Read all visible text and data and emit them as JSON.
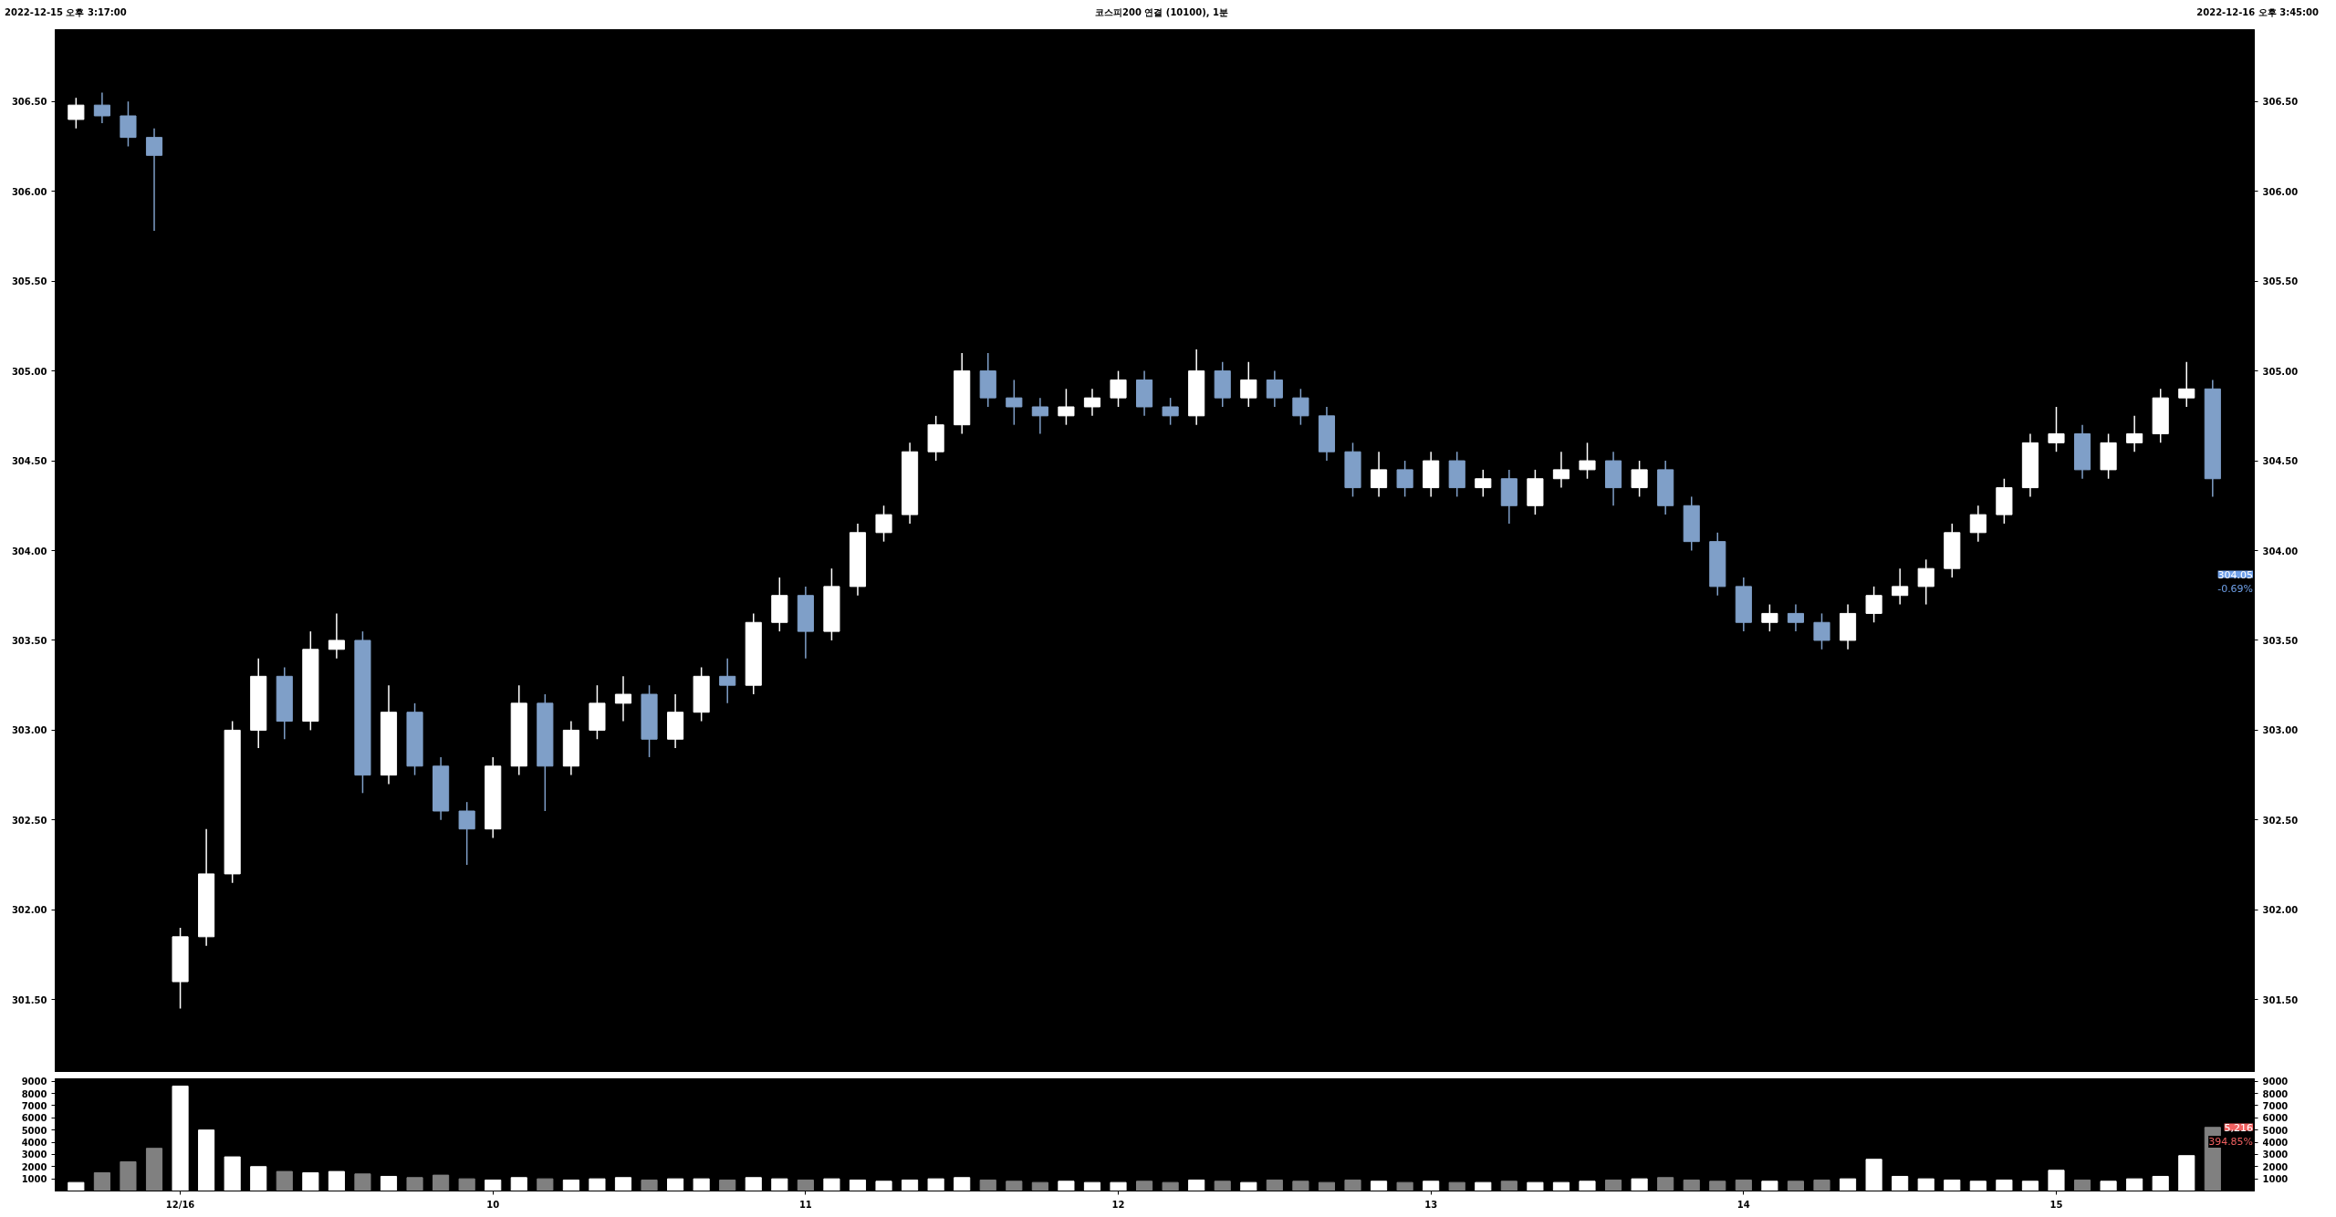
{
  "chart_data": [
    {
      "type": "candlestick",
      "title": "코스피200 연결 (10100), 1분",
      "annotations": [
        "2022-12-15 오후 3:17:00",
        "2022-12-16 오후 3:45:00",
        "304.05",
        "-0.69%"
      ],
      "categories": [
        null,
        null,
        null,
        null,
        null,
        null,
        null,
        null,
        null,
        null,
        null,
        null,
        null,
        null,
        null,
        null,
        null,
        null,
        null,
        null,
        null,
        null,
        null,
        null,
        null,
        null,
        null,
        null,
        null,
        null,
        null,
        null,
        null,
        null,
        null,
        null,
        null,
        null,
        null,
        null,
        null,
        null,
        null,
        null,
        null,
        null,
        null,
        null,
        null,
        null,
        null,
        null,
        null,
        null,
        null,
        null,
        null,
        null,
        null,
        null,
        null,
        null,
        null,
        null,
        null,
        null,
        null,
        null,
        null,
        null,
        null,
        null,
        null,
        null,
        null,
        null,
        null,
        null,
        null,
        null,
        null,
        null,
        null
      ],
      "ohlc": [
        [
          306.4,
          306.52,
          306.35,
          306.48
        ],
        [
          306.48,
          306.55,
          306.38,
          306.42
        ],
        [
          306.42,
          306.5,
          306.25,
          306.3
        ],
        [
          306.3,
          306.35,
          305.78,
          306.2
        ],
        [
          301.6,
          301.9,
          301.45,
          301.85
        ],
        [
          301.85,
          302.45,
          301.8,
          302.2
        ],
        [
          302.2,
          303.05,
          302.15,
          303.0
        ],
        [
          303.0,
          303.4,
          302.9,
          303.3
        ],
        [
          303.3,
          303.35,
          302.95,
          303.05
        ],
        [
          303.05,
          303.55,
          303.0,
          303.45
        ],
        [
          303.45,
          303.65,
          303.4,
          303.5
        ],
        [
          303.5,
          303.55,
          302.65,
          302.75
        ],
        [
          302.75,
          303.25,
          302.7,
          303.1
        ],
        [
          303.1,
          303.15,
          302.75,
          302.8
        ],
        [
          302.8,
          302.85,
          302.5,
          302.55
        ],
        [
          302.55,
          302.6,
          302.25,
          302.45
        ],
        [
          302.45,
          302.85,
          302.4,
          302.8
        ],
        [
          302.8,
          303.25,
          302.75,
          303.15
        ],
        [
          303.15,
          303.2,
          302.55,
          302.8
        ],
        [
          302.8,
          303.05,
          302.75,
          303.0
        ],
        [
          303.0,
          303.25,
          302.95,
          303.15
        ],
        [
          303.15,
          303.3,
          303.05,
          303.2
        ],
        [
          303.2,
          303.25,
          302.85,
          302.95
        ],
        [
          302.95,
          303.2,
          302.9,
          303.1
        ],
        [
          303.1,
          303.35,
          303.05,
          303.3
        ],
        [
          303.3,
          303.4,
          303.15,
          303.25
        ],
        [
          303.25,
          303.65,
          303.2,
          303.6
        ],
        [
          303.6,
          303.85,
          303.55,
          303.75
        ],
        [
          303.75,
          303.8,
          303.4,
          303.55
        ],
        [
          303.55,
          303.9,
          303.5,
          303.8
        ],
        [
          303.8,
          304.15,
          303.75,
          304.1
        ],
        [
          304.1,
          304.25,
          304.05,
          304.2
        ],
        [
          304.2,
          304.6,
          304.15,
          304.55
        ],
        [
          304.55,
          304.75,
          304.5,
          304.7
        ],
        [
          304.7,
          305.1,
          304.65,
          305.0
        ],
        [
          305.0,
          305.1,
          304.8,
          304.85
        ],
        [
          304.85,
          304.95,
          304.7,
          304.8
        ],
        [
          304.8,
          304.85,
          304.65,
          304.75
        ],
        [
          304.75,
          304.9,
          304.7,
          304.8
        ],
        [
          304.8,
          304.9,
          304.75,
          304.85
        ],
        [
          304.85,
          305.0,
          304.8,
          304.95
        ],
        [
          304.95,
          305.0,
          304.75,
          304.8
        ],
        [
          304.8,
          304.85,
          304.7,
          304.75
        ],
        [
          304.75,
          305.12,
          304.7,
          305.0
        ],
        [
          305.0,
          305.05,
          304.8,
          304.85
        ],
        [
          304.85,
          305.05,
          304.8,
          304.95
        ],
        [
          304.95,
          305.0,
          304.8,
          304.85
        ],
        [
          304.85,
          304.9,
          304.7,
          304.75
        ],
        [
          304.75,
          304.8,
          304.5,
          304.55
        ],
        [
          304.55,
          304.6,
          304.3,
          304.35
        ],
        [
          304.35,
          304.55,
          304.3,
          304.45
        ],
        [
          304.45,
          304.5,
          304.3,
          304.35
        ],
        [
          304.35,
          304.55,
          304.3,
          304.5
        ],
        [
          304.5,
          304.55,
          304.3,
          304.35
        ],
        [
          304.35,
          304.45,
          304.3,
          304.4
        ],
        [
          304.4,
          304.45,
          304.15,
          304.25
        ],
        [
          304.25,
          304.45,
          304.2,
          304.4
        ],
        [
          304.4,
          304.55,
          304.35,
          304.45
        ],
        [
          304.45,
          304.6,
          304.4,
          304.5
        ],
        [
          304.5,
          304.55,
          304.25,
          304.35
        ],
        [
          304.35,
          304.5,
          304.3,
          304.45
        ],
        [
          304.45,
          304.5,
          304.2,
          304.25
        ],
        [
          304.25,
          304.3,
          304.0,
          304.05
        ],
        [
          304.05,
          304.1,
          303.75,
          303.8
        ],
        [
          303.8,
          303.85,
          303.55,
          303.6
        ],
        [
          303.6,
          303.7,
          303.55,
          303.65
        ],
        [
          303.65,
          303.7,
          303.55,
          303.6
        ],
        [
          303.6,
          303.65,
          303.45,
          303.5
        ],
        [
          303.5,
          303.7,
          303.45,
          303.65
        ],
        [
          303.65,
          303.8,
          303.6,
          303.75
        ],
        [
          303.75,
          303.9,
          303.7,
          303.8
        ],
        [
          303.8,
          303.95,
          303.7,
          303.9
        ],
        [
          303.9,
          304.15,
          303.85,
          304.1
        ],
        [
          304.1,
          304.25,
          304.05,
          304.2
        ],
        [
          304.2,
          304.4,
          304.15,
          304.35
        ],
        [
          304.35,
          304.65,
          304.3,
          304.6
        ],
        [
          304.6,
          304.8,
          304.55,
          304.65
        ],
        [
          304.65,
          304.7,
          304.4,
          304.45
        ],
        [
          304.45,
          304.65,
          304.4,
          304.6
        ],
        [
          304.6,
          304.75,
          304.55,
          304.65
        ],
        [
          304.65,
          304.9,
          304.6,
          304.85
        ],
        [
          304.85,
          305.05,
          304.8,
          304.9
        ],
        [
          304.9,
          304.95,
          304.3,
          304.4
        ]
      ],
      "colors": [
        "#ffffff",
        "#7f9fc8",
        "#7f9fc8",
        "#7f9fc8",
        "#ffffff",
        "#ffffff",
        "#ffffff",
        "#ffffff",
        "#7f9fc8",
        "#ffffff",
        "#ffffff",
        "#7f9fc8",
        "#ffffff",
        "#7f9fc8",
        "#7f9fc8",
        "#7f9fc8",
        "#ffffff",
        "#ffffff",
        "#7f9fc8",
        "#ffffff",
        "#ffffff",
        "#ffffff",
        "#7f9fc8",
        "#ffffff",
        "#ffffff",
        "#7f9fc8",
        "#ffffff",
        "#ffffff",
        "#7f9fc8",
        "#ffffff",
        "#ffffff",
        "#ffffff",
        "#ffffff",
        "#ffffff",
        "#ffffff",
        "#7f9fc8",
        "#7f9fc8",
        "#7f9fc8",
        "#ffffff",
        "#ffffff",
        "#ffffff",
        "#7f9fc8",
        "#7f9fc8",
        "#ffffff",
        "#7f9fc8",
        "#ffffff",
        "#7f9fc8",
        "#7f9fc8",
        "#7f9fc8",
        "#7f9fc8",
        "#ffffff",
        "#7f9fc8",
        "#ffffff",
        "#7f9fc8",
        "#ffffff",
        "#7f9fc8",
        "#ffffff",
        "#ffffff",
        "#ffffff",
        "#7f9fc8",
        "#ffffff",
        "#7f9fc8",
        "#7f9fc8",
        "#7f9fc8",
        "#7f9fc8",
        "#ffffff",
        "#7f9fc8",
        "#7f9fc8",
        "#ffffff",
        "#ffffff",
        "#ffffff",
        "#ffffff",
        "#ffffff",
        "#ffffff",
        "#ffffff",
        "#ffffff",
        "#ffffff",
        "#7f9fc8",
        "#ffffff",
        "#ffffff",
        "#ffffff",
        "#ffffff",
        "#7f9fc8"
      ],
      "ylim": [
        301.1,
        306.9
      ],
      "yticks": [
        {
          "value": 301.5,
          "label": "301.50"
        },
        {
          "value": 302.0,
          "label": "302.00"
        },
        {
          "value": 302.5,
          "label": "302.50"
        },
        {
          "value": 303.0,
          "label": "303.00"
        },
        {
          "value": 303.5,
          "label": "303.50"
        },
        {
          "value": 304.0,
          "label": "304.00"
        },
        {
          "value": 304.5,
          "label": "304.50"
        },
        {
          "value": 305.0,
          "label": "305.00"
        },
        {
          "value": 305.5,
          "label": "305.50"
        },
        {
          "value": 306.0,
          "label": "306.00"
        },
        {
          "value": 306.5,
          "label": "306.50"
        }
      ],
      "y2lim": [
        301.1,
        306.9
      ],
      "y2ticks": [
        {
          "value": 301.5,
          "label": "301.50"
        },
        {
          "value": 302.0,
          "label": "302.00"
        },
        {
          "value": 302.5,
          "label": "302.50"
        },
        {
          "value": 303.0,
          "label": "303.00"
        },
        {
          "value": 303.5,
          "label": "303.50"
        },
        {
          "value": 304.0,
          "label": "304.00"
        },
        {
          "value": 304.5,
          "label": "304.50"
        },
        {
          "value": 305.0,
          "label": "305.00"
        },
        {
          "value": 305.5,
          "label": "305.50"
        },
        {
          "value": 306.0,
          "label": "306.00"
        },
        {
          "value": 306.5,
          "label": "306.50"
        }
      ],
      "tick_labels": "y"
    },
    {
      "type": "bar",
      "annotations": [
        "5,216",
        "394.85%"
      ],
      "categories": [
        null,
        null,
        null,
        null,
        "12/16",
        null,
        null,
        null,
        null,
        null,
        null,
        null,
        null,
        null,
        null,
        null,
        "10",
        null,
        null,
        null,
        null,
        null,
        null,
        null,
        null,
        null,
        null,
        null,
        "11",
        null,
        null,
        null,
        null,
        null,
        null,
        null,
        null,
        null,
        null,
        null,
        "12",
        null,
        null,
        null,
        null,
        null,
        null,
        null,
        null,
        null,
        null,
        null,
        "13",
        null,
        null,
        null,
        null,
        null,
        null,
        null,
        null,
        null,
        null,
        null,
        "14",
        null,
        null,
        null,
        null,
        null,
        null,
        null,
        null,
        null,
        null,
        null,
        "15",
        null,
        null,
        null,
        null,
        null,
        null
      ],
      "values": [
        700,
        1500,
        2400,
        3500,
        8600,
        5000,
        2800,
        2000,
        1600,
        1500,
        1600,
        1400,
        1200,
        1100,
        1300,
        1000,
        900,
        1100,
        1000,
        900,
        1000,
        1100,
        900,
        1000,
        1000,
        900,
        1100,
        1000,
        900,
        1000,
        900,
        800,
        900,
        1000,
        1100,
        900,
        800,
        700,
        800,
        700,
        700,
        800,
        700,
        900,
        800,
        700,
        900,
        800,
        700,
        900,
        800,
        700,
        800,
        700,
        700,
        800,
        700,
        700,
        800,
        900,
        1000,
        1100,
        900,
        800,
        900,
        800,
        800,
        900,
        1000,
        2600,
        1200,
        1000,
        900,
        800,
        900,
        800,
        1700,
        900,
        800,
        1000,
        1200,
        2900,
        5216
      ],
      "colors": [
        "#ffffff",
        "#808080",
        "#808080",
        "#808080",
        "#ffffff",
        "#ffffff",
        "#ffffff",
        "#ffffff",
        "#808080",
        "#ffffff",
        "#ffffff",
        "#808080",
        "#ffffff",
        "#808080",
        "#808080",
        "#808080",
        "#ffffff",
        "#ffffff",
        "#808080",
        "#ffffff",
        "#ffffff",
        "#ffffff",
        "#808080",
        "#ffffff",
        "#ffffff",
        "#808080",
        "#ffffff",
        "#ffffff",
        "#808080",
        "#ffffff",
        "#ffffff",
        "#ffffff",
        "#ffffff",
        "#ffffff",
        "#ffffff",
        "#808080",
        "#808080",
        "#808080",
        "#ffffff",
        "#ffffff",
        "#ffffff",
        "#808080",
        "#808080",
        "#ffffff",
        "#808080",
        "#ffffff",
        "#808080",
        "#808080",
        "#808080",
        "#808080",
        "#ffffff",
        "#808080",
        "#ffffff",
        "#808080",
        "#ffffff",
        "#808080",
        "#ffffff",
        "#ffffff",
        "#ffffff",
        "#808080",
        "#ffffff",
        "#808080",
        "#808080",
        "#808080",
        "#808080",
        "#ffffff",
        "#808080",
        "#808080",
        "#ffffff",
        "#ffffff",
        "#ffffff",
        "#ffffff",
        "#ffffff",
        "#ffffff",
        "#ffffff",
        "#ffffff",
        "#ffffff",
        "#808080",
        "#ffffff",
        "#ffffff",
        "#ffffff",
        "#ffffff",
        "#808080"
      ],
      "ylim": [
        0,
        9200
      ],
      "yticks": [
        1000,
        2000,
        3000,
        4000,
        5000,
        6000,
        7000,
        8000,
        9000
      ],
      "y2lim": [
        0,
        9200
      ],
      "y2ticks": [
        1000,
        2000,
        3000,
        4000,
        5000,
        6000,
        7000,
        8000,
        9000
      ]
    }
  ]
}
